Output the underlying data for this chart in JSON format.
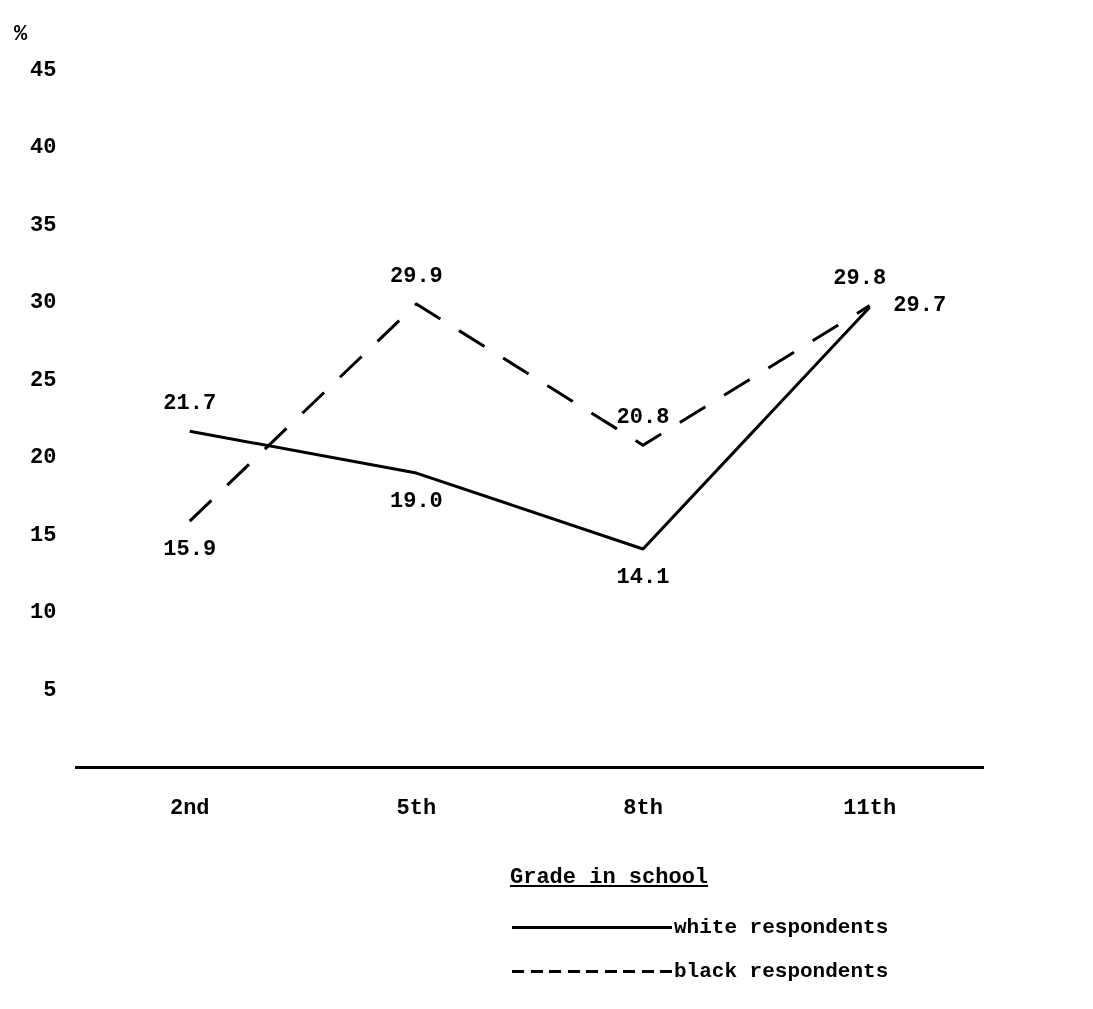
{
  "chart_data": {
    "type": "line",
    "ylabel": "%",
    "xlabel": "Grade in school",
    "categories": [
      "2nd",
      "5th",
      "8th",
      "11th"
    ],
    "series": [
      {
        "name": "white respondents",
        "color": "#000000",
        "line_style": "solid",
        "values": [
          21.7,
          19.0,
          14.1,
          29.7
        ],
        "value_labels": [
          "21.7",
          "19.0",
          "14.1",
          "29.7"
        ]
      },
      {
        "name": "black respondents",
        "color": "#000000",
        "line_style": "dashed",
        "values": [
          15.9,
          29.9,
          20.8,
          29.8
        ],
        "value_labels": [
          "15.9",
          "29.9",
          "20.8",
          "29.8"
        ]
      }
    ],
    "ylim": [
      0,
      45
    ],
    "yticks": [
      5,
      10,
      15,
      20,
      25,
      30,
      35,
      40,
      45
    ],
    "grid": false,
    "legend": "bottom",
    "marker": "none"
  }
}
